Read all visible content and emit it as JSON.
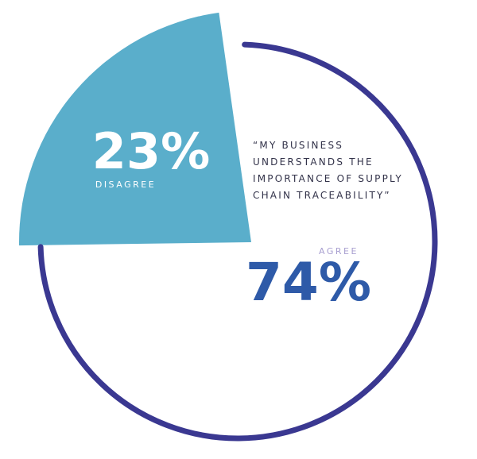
{
  "chart_data": {
    "type": "pie",
    "categories": [
      "DISAGREE",
      "AGREE"
    ],
    "values": [
      23,
      74
    ],
    "value_labels": [
      "23%",
      "74%"
    ],
    "colors": [
      "#5aaecb",
      "#3a3891"
    ],
    "annotation": [
      "“MY BUSINESS",
      "UNDERSTANDS THE",
      "IMPORTANCE OF SUPPLY",
      "CHAIN TRACEABILITY”"
    ]
  }
}
